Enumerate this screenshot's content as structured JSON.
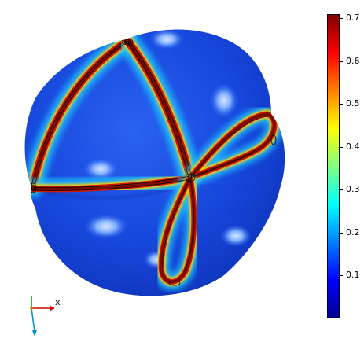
{
  "colorbar": {
    "ticks": [
      "0.7",
      "0.6",
      "0.5",
      "0.4",
      "0.3",
      "0.2",
      "0.1"
    ],
    "tick_values": [
      0.7,
      0.6,
      0.5,
      0.4,
      0.3,
      0.2,
      0.1
    ],
    "min": 0.0,
    "max": 0.71,
    "colormap": "rainbow",
    "colors": [
      "#00008f",
      "#0000ff",
      "#0080ff",
      "#00ffff",
      "#80ff80",
      "#ffff00",
      "#ff8000",
      "#ff0000",
      "#800000"
    ]
  },
  "axes_triad": {
    "x_label": "x"
  },
  "surface": {
    "base_color": "#1545d8",
    "band_peak_color": "#7a0c00"
  }
}
